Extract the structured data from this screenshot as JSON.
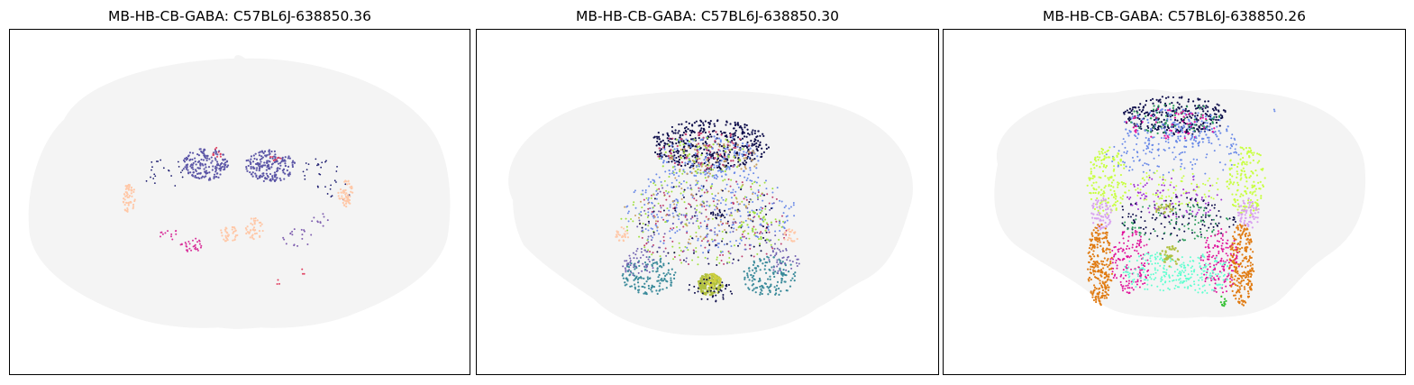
{
  "figure": {
    "panels": [
      {
        "title": "MB-HB-CB-GABA: C57BL6J-638850.36"
      },
      {
        "title": "MB-HB-CB-GABA: C57BL6J-638850.30"
      },
      {
        "title": "MB-HB-CB-GABA: C57BL6J-638850.26"
      }
    ]
  },
  "chart_data": [
    {
      "type": "scatter",
      "title": "MB-HB-CB-GABA: C57BL6J-638850.36",
      "xlabel": "",
      "ylabel": "",
      "grid": false,
      "axis_ticks": false,
      "background_color": "#eeeeee",
      "series": [
        {
          "color": "#5b55a6",
          "values": []
        },
        {
          "color": "#1a1a6e",
          "values": []
        },
        {
          "color": "#ffc8a8",
          "values": []
        },
        {
          "color": "#d8309a",
          "values": []
        },
        {
          "color": "#e04060",
          "values": []
        },
        {
          "color": "#8060b0",
          "values": []
        }
      ]
    },
    {
      "type": "scatter",
      "title": "MB-HB-CB-GABA: C57BL6J-638850.30",
      "xlabel": "",
      "ylabel": "",
      "grid": false,
      "axis_ticks": false,
      "background_color": "#eeeeee",
      "series": [
        {
          "color": "#0d0d4a",
          "values": []
        },
        {
          "color": "#6a8ae8",
          "values": []
        },
        {
          "color": "#c04070",
          "values": []
        },
        {
          "color": "#a0e040",
          "values": []
        },
        {
          "color": "#c8a060",
          "values": []
        },
        {
          "color": "#3a8a9a",
          "values": []
        },
        {
          "color": "#b0c040",
          "values": []
        },
        {
          "color": "#ffc8a8",
          "values": []
        },
        {
          "color": "#7060b0",
          "values": []
        },
        {
          "color": "#d0d040",
          "values": []
        }
      ]
    },
    {
      "type": "scatter",
      "title": "MB-HB-CB-GABA: C57BL6J-638850.26",
      "xlabel": "",
      "ylabel": "",
      "grid": false,
      "axis_ticks": false,
      "background_color": "#eeeeee",
      "series": [
        {
          "color": "#0d0d4a",
          "values": []
        },
        {
          "color": "#6a8ae8",
          "values": []
        },
        {
          "color": "#c8ff40",
          "values": []
        },
        {
          "color": "#e07a10",
          "values": []
        },
        {
          "color": "#e0109a",
          "values": []
        },
        {
          "color": "#60ffd0",
          "values": []
        },
        {
          "color": "#a030d0",
          "values": []
        },
        {
          "color": "#d8a0f0",
          "values": []
        },
        {
          "color": "#2a9a5a",
          "values": []
        },
        {
          "color": "#30c030",
          "values": []
        },
        {
          "color": "#b0c040",
          "values": []
        }
      ]
    }
  ]
}
